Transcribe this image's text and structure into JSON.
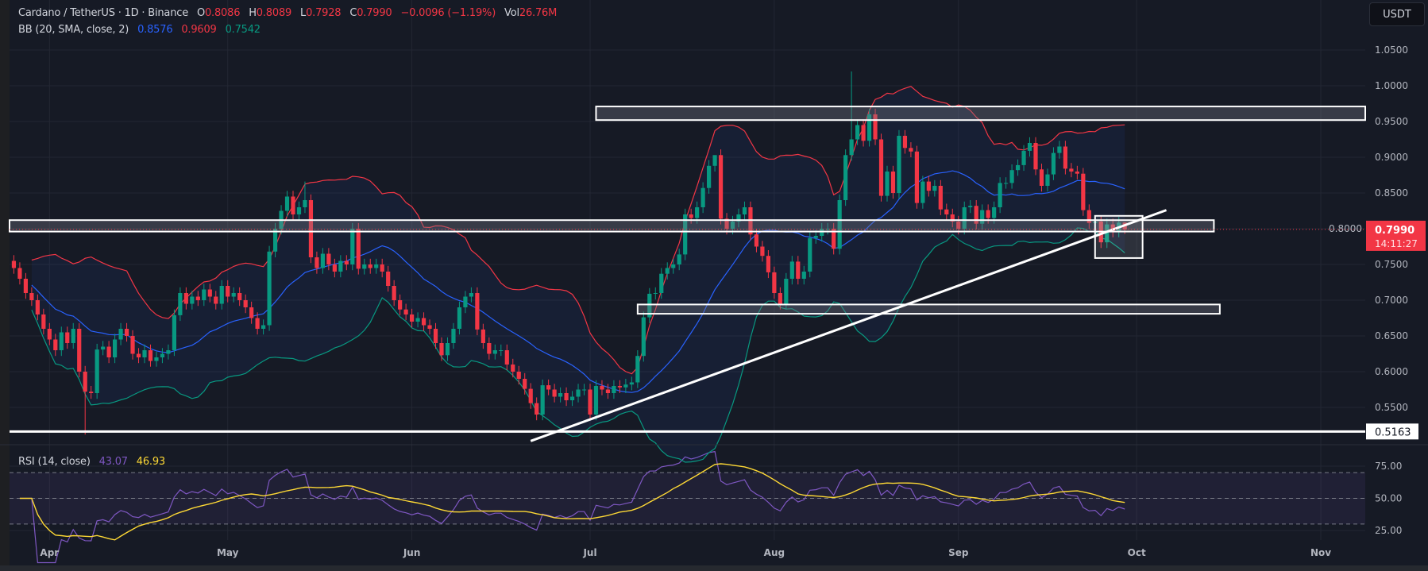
{
  "header": {
    "symbol": "Cardano / TetherUS · 1D · Binance",
    "o_label": "O",
    "o": "0.8086",
    "h_label": "H",
    "h": "0.8089",
    "l_label": "L",
    "l": "0.7928",
    "c_label": "C",
    "c": "0.7990",
    "change": "−0.0096 (−1.19%)",
    "vol_label": "Vol",
    "vol": "26.76M"
  },
  "bb": {
    "label": "BB (20, SMA, close, 2)",
    "basis": "0.8576",
    "upper": "0.9609",
    "lower": "0.7542"
  },
  "rsi": {
    "label": "RSI (14, close)",
    "value": "43.07",
    "ma": "46.93"
  },
  "price_axis": {
    "currency": "USDT",
    "ticks": [
      "1.0500",
      "1.0000",
      "0.9500",
      "0.9000",
      "0.8500",
      "0.8000",
      "0.7500",
      "0.7000",
      "0.6500",
      "0.6000",
      "0.5500"
    ],
    "last_price": "0.7990",
    "countdown": "14:11:27",
    "support_label": "0.5163"
  },
  "rsi_axis": {
    "ticks": [
      "75.00",
      "50.00",
      "25.00"
    ],
    "bands": [
      70,
      50,
      30
    ]
  },
  "time_axis": {
    "months": [
      "Apr",
      "May",
      "Jun",
      "Jul",
      "Aug",
      "Sep",
      "Oct",
      "Nov"
    ]
  },
  "colors": {
    "up": "#089981",
    "down": "#f23645",
    "bb_basis": "#2962ff",
    "bb_upper": "#f23645",
    "bb_lower": "#089981",
    "rsi": "#7e57c2",
    "rsi_ma": "#fdd835",
    "zone": "#ffffff"
  },
  "chart_data": {
    "type": "candlestick",
    "interval": "1D",
    "dates": {
      "first": "Mar 26",
      "last": "Sep 29"
    },
    "close": [
      0.745,
      0.73,
      0.71,
      0.7,
      0.68,
      0.66,
      0.645,
      0.63,
      0.655,
      0.64,
      0.66,
      0.6,
      0.572,
      0.57,
      0.631,
      0.635,
      0.62,
      0.645,
      0.66,
      0.65,
      0.625,
      0.62,
      0.63,
      0.615,
      0.62,
      0.625,
      0.63,
      0.679,
      0.71,
      0.695,
      0.705,
      0.7,
      0.715,
      0.705,
      0.695,
      0.72,
      0.705,
      0.71,
      0.7,
      0.69,
      0.675,
      0.66,
      0.665,
      0.768,
      0.8,
      0.825,
      0.845,
      0.82,
      0.83,
      0.84,
      0.76,
      0.745,
      0.765,
      0.75,
      0.74,
      0.755,
      0.75,
      0.8,
      0.744,
      0.75,
      0.745,
      0.75,
      0.74,
      0.72,
      0.7,
      0.687,
      0.68,
      0.67,
      0.675,
      0.665,
      0.66,
      0.64,
      0.623,
      0.64,
      0.66,
      0.69,
      0.705,
      0.71,
      0.659,
      0.64,
      0.625,
      0.63,
      0.63,
      0.61,
      0.6,
      0.59,
      0.576,
      0.556,
      0.54,
      0.581,
      0.575,
      0.565,
      0.57,
      0.56,
      0.565,
      0.575,
      0.575,
      0.54,
      0.58,
      0.575,
      0.57,
      0.58,
      0.578,
      0.582,
      0.585,
      0.622,
      0.676,
      0.709,
      0.71,
      0.737,
      0.745,
      0.75,
      0.764,
      0.82,
      0.815,
      0.83,
      0.857,
      0.888,
      0.903,
      0.814,
      0.8,
      0.81,
      0.82,
      0.83,
      0.792,
      0.775,
      0.762,
      0.739,
      0.71,
      0.695,
      0.73,
      0.754,
      0.73,
      0.74,
      0.787,
      0.79,
      0.8,
      0.8,
      0.772,
      0.84,
      0.903,
      0.925,
      0.945,
      0.923,
      0.96,
      0.925,
      0.846,
      0.88,
      0.85,
      0.93,
      0.913,
      0.908,
      0.836,
      0.866,
      0.853,
      0.86,
      0.827,
      0.82,
      0.81,
      0.8,
      0.83,
      0.832,
      0.807,
      0.826,
      0.815,
      0.83,
      0.864,
      0.864,
      0.882,
      0.889,
      0.909,
      0.92,
      0.883,
      0.86,
      0.876,
      0.906,
      0.915,
      0.884,
      0.88,
      0.877,
      0.826,
      0.808,
      0.81,
      0.781,
      0.806,
      0.796,
      0.8086,
      0.799
    ],
    "notable_wicks": [
      {
        "date": "Apr 7",
        "low": 0.512
      },
      {
        "date": "May 14",
        "high": 0.866
      },
      {
        "date": "Jul 22",
        "high": 0.896
      },
      {
        "date": "Aug 14",
        "high": 1.02
      },
      {
        "date": "Sep 29",
        "high": 0.8089,
        "low": 0.7928
      }
    ],
    "indicators": {
      "bb": {
        "length": 20,
        "ma": "SMA",
        "source": "close",
        "mult": 2
      },
      "rsi": {
        "length": 14,
        "ma_length": 14
      }
    },
    "y_range": [
      0.5,
      1.07
    ],
    "drawings": {
      "zones": [
        {
          "name": "resistance-zone-top",
          "from": "Jul 2",
          "to": "right-edge",
          "low": 0.952,
          "high": 0.971
        },
        {
          "name": "zone-mid",
          "from": "left-edge",
          "to": "Oct 14",
          "low": 0.796,
          "high": 0.812
        },
        {
          "name": "support-zone-low",
          "from": "Jul 9",
          "to": "Oct 15",
          "low": 0.681,
          "high": 0.694
        }
      ],
      "support_line": 0.5163,
      "trendline": {
        "from": {
          "date": "Jun 21",
          "price": 0.503
        },
        "to": {
          "date": "Oct 6",
          "price": 0.826
        }
      },
      "highlight_box": {
        "from": "Sep 24",
        "to": "Oct 2",
        "low": 0.759,
        "high": 0.818
      }
    }
  }
}
